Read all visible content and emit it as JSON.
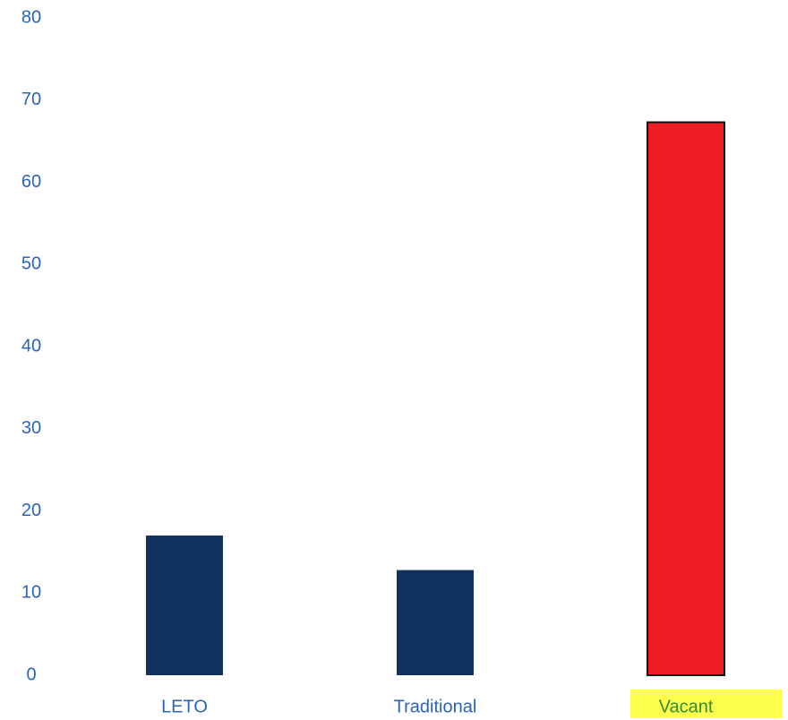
{
  "chart_data": {
    "type": "bar",
    "title": "",
    "xlabel": "",
    "ylabel": "",
    "categories": [
      "LETO",
      "Traditional",
      "Vacant"
    ],
    "values": [
      17,
      12.8,
      67.3
    ],
    "ylim": [
      0,
      80
    ],
    "yticks": [
      "0",
      "10",
      "20",
      "30",
      "40",
      "50",
      "60",
      "70",
      "80"
    ],
    "grid": false,
    "legend": "none",
    "bar_colors": [
      "#11315f",
      "#11315f",
      "#ee1d23"
    ],
    "highlighted_category": "Vacant",
    "highlight_color": "#ffff4d"
  },
  "colors": {
    "axis_label_text": "#2b63b8",
    "highlighted_label_text": "#2f8f2f",
    "bar_outline": "#111111"
  }
}
